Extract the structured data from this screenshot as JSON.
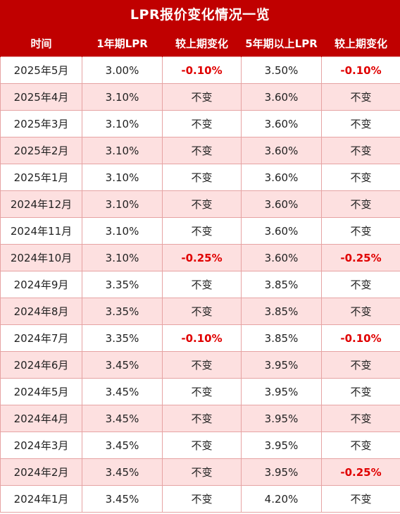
{
  "title": "LPR报价变化情况一览",
  "headers": [
    "时间",
    "1年期LPR",
    "较上期变化",
    "5年期以上LPR",
    "较上期变化"
  ],
  "colors": {
    "header_bg": "#c00000",
    "row_alt_bg": "#fde0e0",
    "change_red": "#e00000"
  },
  "rows": [
    {
      "date": "2025年5月",
      "lpr1": "3.00%",
      "chg1": "-0.10%",
      "lpr5": "3.50%",
      "chg5": "-0.10%"
    },
    {
      "date": "2025年4月",
      "lpr1": "3.10%",
      "chg1": "不变",
      "lpr5": "3.60%",
      "chg5": "不变"
    },
    {
      "date": "2025年3月",
      "lpr1": "3.10%",
      "chg1": "不变",
      "lpr5": "3.60%",
      "chg5": "不变"
    },
    {
      "date": "2025年2月",
      "lpr1": "3.10%",
      "chg1": "不变",
      "lpr5": "3.60%",
      "chg5": "不变"
    },
    {
      "date": "2025年1月",
      "lpr1": "3.10%",
      "chg1": "不变",
      "lpr5": "3.60%",
      "chg5": "不变"
    },
    {
      "date": "2024年12月",
      "lpr1": "3.10%",
      "chg1": "不变",
      "lpr5": "3.60%",
      "chg5": "不变"
    },
    {
      "date": "2024年11月",
      "lpr1": "3.10%",
      "chg1": "不变",
      "lpr5": "3.60%",
      "chg5": "不变"
    },
    {
      "date": "2024年10月",
      "lpr1": "3.10%",
      "chg1": "-0.25%",
      "lpr5": "3.60%",
      "chg5": "-0.25%"
    },
    {
      "date": "2024年9月",
      "lpr1": "3.35%",
      "chg1": "不变",
      "lpr5": "3.85%",
      "chg5": "不变"
    },
    {
      "date": "2024年8月",
      "lpr1": "3.35%",
      "chg1": "不变",
      "lpr5": "3.85%",
      "chg5": "不变"
    },
    {
      "date": "2024年7月",
      "lpr1": "3.35%",
      "chg1": "-0.10%",
      "lpr5": "3.85%",
      "chg5": "-0.10%"
    },
    {
      "date": "2024年6月",
      "lpr1": "3.45%",
      "chg1": "不变",
      "lpr5": "3.95%",
      "chg5": "不变"
    },
    {
      "date": "2024年5月",
      "lpr1": "3.45%",
      "chg1": "不变",
      "lpr5": "3.95%",
      "chg5": "不变"
    },
    {
      "date": "2024年4月",
      "lpr1": "3.45%",
      "chg1": "不变",
      "lpr5": "3.95%",
      "chg5": "不变"
    },
    {
      "date": "2024年3月",
      "lpr1": "3.45%",
      "chg1": "不变",
      "lpr5": "3.95%",
      "chg5": "不变"
    },
    {
      "date": "2024年2月",
      "lpr1": "3.45%",
      "chg1": "不变",
      "lpr5": "3.95%",
      "chg5": "-0.25%"
    },
    {
      "date": "2024年1月",
      "lpr1": "3.45%",
      "chg1": "不变",
      "lpr5": "4.20%",
      "chg5": "不变"
    }
  ]
}
